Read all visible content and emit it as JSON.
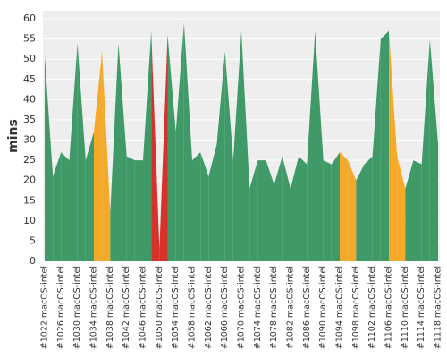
{
  "chart_data": {
    "type": "area",
    "y_label": "mins",
    "categories": [
      "#1022 macOS-intel",
      null,
      "#1026 macOS-intel",
      null,
      "#1030 macOS-intel",
      null,
      "#1034 macOS-intel",
      null,
      "#1038 macOS-intel",
      null,
      "#1042 macOS-intel",
      null,
      "#1046 macOS-intel",
      null,
      "#1050 macOS-intel",
      null,
      "#1054 macOS-intel",
      null,
      "#1058 macOS-intel",
      null,
      "#1062 macOS-intel",
      null,
      "#1066 macOS-intel",
      null,
      "#1070 macOS-intel",
      null,
      "#1074 macOS-intel",
      null,
      "#1078 macOS-intel",
      null,
      "#1082 macOS-intel",
      null,
      "#1086 macOS-intel",
      null,
      "#1090 macOS-intel",
      null,
      "#1094 macOS-intel",
      null,
      "#1098 macOS-intel",
      null,
      "#1102 macOS-intel",
      null,
      "#1106 macOS-intel",
      null,
      "#1110 macOS-intel",
      null,
      "#1114 macOS-intel",
      null,
      "#1118 macOS-intel"
    ],
    "values": [
      51,
      21,
      27,
      25,
      54,
      25,
      32,
      52,
      12,
      54,
      26,
      25,
      25,
      57,
      3,
      56,
      32,
      59,
      25,
      27,
      21,
      29,
      52,
      25,
      57,
      18,
      25,
      25,
      19,
      26,
      18,
      26,
      24,
      57,
      25,
      24,
      27,
      25,
      20,
      24,
      26,
      55,
      57,
      26,
      18,
      25,
      24,
      55,
      29
    ],
    "point_colors": [
      "#3f9a67",
      "#3f9a67",
      "#3f9a67",
      "#3f9a67",
      "#3f9a67",
      "#3f9a67",
      "#3f9a67",
      "#f5a929",
      "#3f9a67",
      "#3f9a67",
      "#3f9a67",
      "#3f9a67",
      "#3f9a67",
      "#3f9a67",
      "#d7312b",
      "#3f9a67",
      "#3f9a67",
      "#3f9a67",
      "#3f9a67",
      "#3f9a67",
      "#3f9a67",
      "#3f9a67",
      "#3f9a67",
      "#3f9a67",
      "#3f9a67",
      "#3f9a67",
      "#3f9a67",
      "#3f9a67",
      "#3f9a67",
      "#3f9a67",
      "#3f9a67",
      "#3f9a67",
      "#3f9a67",
      "#3f9a67",
      "#3f9a67",
      "#3f9a67",
      "#3f9a67",
      "#f5a929",
      "#3f9a67",
      "#3f9a67",
      "#3f9a67",
      "#3f9a67",
      "#3f9a67",
      "#f5a929",
      "#3f9a67",
      "#3f9a67",
      "#3f9a67",
      "#3f9a67",
      "#3f9a67"
    ],
    "ylim": [
      0,
      62
    ],
    "yticks": [
      0,
      5,
      10,
      15,
      20,
      25,
      30,
      35,
      40,
      45,
      50,
      55,
      60
    ],
    "grid": true
  }
}
